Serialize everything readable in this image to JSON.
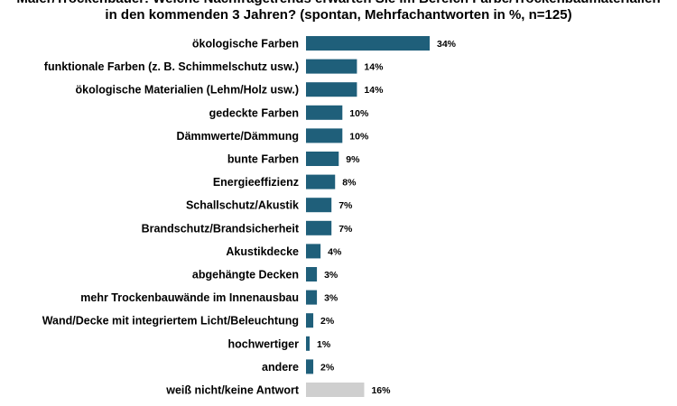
{
  "chart_data": {
    "type": "bar",
    "orientation": "horizontal",
    "title_lines": [
      "Maler/Trockenbauer: Welche Nachfragetrends  erwarten Sie im Bereich Farbe/Trockenbaumaterialien",
      "in den kommenden  3 Jahren? (spontan,  Mehrfachantworten  in %, n=125)"
    ],
    "xlabel": "",
    "ylabel": "",
    "xlim": [
      0,
      34
    ],
    "grid": false,
    "legend": "none",
    "value_suffix": "%",
    "categories": [
      "ökologische Farben",
      "funktionale Farben (z. B. Schimmelschutz usw.)",
      "ökologische Materialien (Lehm/Holz usw.)",
      "gedeckte Farben",
      "Dämmwerte/Dämmung",
      "bunte Farben",
      "Energieeffizienz",
      "Schallschutz/Akustik",
      "Brandschutz/Brandsicherheit",
      "Akustikdecke",
      "abgehängte Decken",
      "mehr Trockenbauwände im Innenausbau",
      "Wand/Decke mit integriertem Licht/Beleuchtung",
      "hochwertiger",
      "andere",
      "weiß nicht/keine Antwort"
    ],
    "values": [
      34,
      14,
      14,
      10,
      10,
      9,
      8,
      7,
      7,
      4,
      3,
      3,
      2,
      1,
      2,
      16
    ],
    "colors": {
      "primary": "#1f5f7a",
      "no_answer": "#cfcfcf",
      "text": "#000000"
    },
    "special_colored_categories": [
      "weiß nicht/keine Antwort"
    ]
  }
}
